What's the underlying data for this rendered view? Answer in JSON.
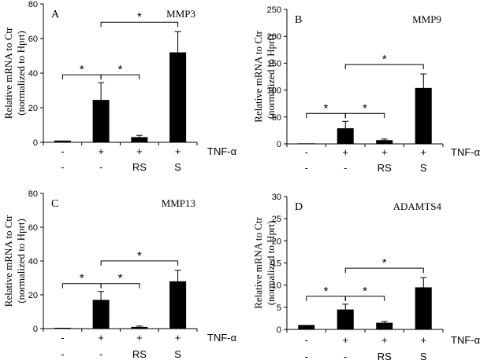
{
  "figure": {
    "treatment_rows": {
      "row1": [
        "-",
        "+",
        "+",
        "+"
      ],
      "row2": [
        "-",
        "-",
        "RS",
        "S"
      ],
      "row1_label": "TNF-α"
    }
  },
  "chart_data": [
    {
      "type": "bar",
      "panel_letter": "A",
      "title": "MMP3",
      "ylabel_line1": "Relative  mRNA to Ctr",
      "ylabel_line2": "(normalized  to Hprt)",
      "ylim": [
        0,
        80
      ],
      "yticks": [
        0,
        20,
        40,
        60,
        80
      ],
      "categories": [
        "-/-",
        "+/-",
        "+/RS",
        "+/S"
      ],
      "values": [
        1,
        24.5,
        3,
        52
      ],
      "errors": [
        0,
        10,
        1,
        12
      ],
      "significance": [
        {
          "from": 0,
          "to": 1,
          "label": "*"
        },
        {
          "from": 1,
          "to": 2,
          "label": "*"
        },
        {
          "from": 1,
          "to": 3,
          "label": "*"
        }
      ],
      "bar_color": "#000000"
    },
    {
      "type": "bar",
      "panel_letter": "B",
      "title": "MMP9",
      "ylabel_line1": "Relative  mRNA to Ctr",
      "ylabel_line2": "(normalized  to Hprt)",
      "ylim": [
        0,
        250
      ],
      "yticks": [
        0,
        50,
        100,
        150,
        200,
        250
      ],
      "categories": [
        "-/-",
        "+/-",
        "+/RS",
        "+/S"
      ],
      "values": [
        1,
        29,
        7,
        104
      ],
      "errors": [
        0,
        13,
        2,
        26
      ],
      "significance": [
        {
          "from": 0,
          "to": 1,
          "label": "*"
        },
        {
          "from": 1,
          "to": 2,
          "label": "*"
        },
        {
          "from": 1,
          "to": 3,
          "label": "*"
        }
      ],
      "bar_color": "#000000"
    },
    {
      "type": "bar",
      "panel_letter": "C",
      "title": "MMP13",
      "ylabel_line1": "Relative  mRNA to Ctr",
      "ylabel_line2": "(normalized  to Hprt)",
      "ylim": [
        0,
        80
      ],
      "yticks": [
        0,
        20,
        40,
        60,
        80
      ],
      "categories": [
        "-/-",
        "+/-",
        "+/RS",
        "+/S"
      ],
      "values": [
        0.5,
        17,
        1,
        28
      ],
      "errors": [
        0,
        5,
        0.5,
        6.5
      ],
      "significance": [
        {
          "from": 0,
          "to": 1,
          "label": "*"
        },
        {
          "from": 1,
          "to": 2,
          "label": "*"
        },
        {
          "from": 1,
          "to": 3,
          "label": "*"
        }
      ],
      "bar_color": "#000000"
    },
    {
      "type": "bar",
      "panel_letter": "D",
      "title": "ADAMTS4",
      "ylabel_line1": "Relative  mRNA to Ctr",
      "ylabel_line2": "(normalized  to Hprt)",
      "ylim": [
        0,
        30
      ],
      "yticks": [
        0,
        5,
        10,
        15,
        20,
        25,
        30
      ],
      "categories": [
        "-/-",
        "+/-",
        "+/RS",
        "+/S"
      ],
      "values": [
        1,
        4.5,
        1.5,
        9.5
      ],
      "errors": [
        0,
        1.2,
        0.3,
        2.2
      ],
      "significance": [
        {
          "from": 0,
          "to": 1,
          "label": "*"
        },
        {
          "from": 1,
          "to": 2,
          "label": "*"
        },
        {
          "from": 1,
          "to": 3,
          "label": "*"
        }
      ],
      "bar_color": "#000000"
    }
  ]
}
